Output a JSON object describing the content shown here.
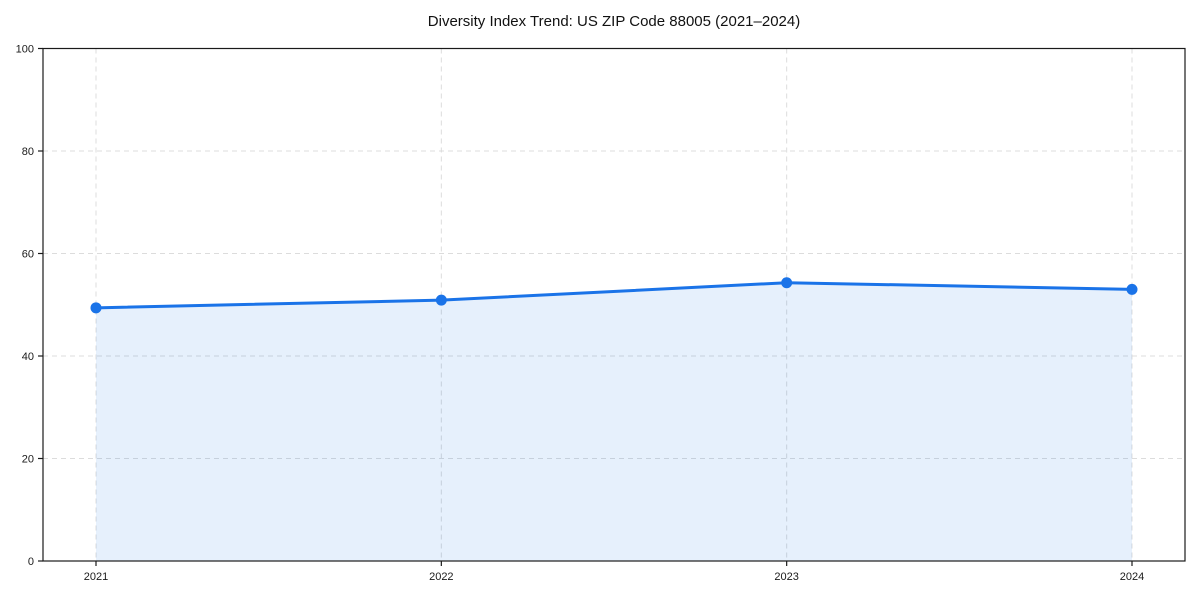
{
  "chart_data": {
    "type": "area",
    "title": "Diversity Index Trend: US ZIP Code 88005 (2021–2024)",
    "categories": [
      "2021",
      "2022",
      "2023",
      "2024"
    ],
    "values": [
      49.4,
      50.9,
      54.3,
      53.0
    ],
    "xlabel": "",
    "ylabel": "",
    "ylim": [
      0,
      100
    ],
    "yticks": [
      0,
      20,
      40,
      60,
      80,
      100
    ],
    "grid": true,
    "grid_style": "dashed",
    "legend_position": "none",
    "marker": "circle",
    "colors": {
      "line": "#1a73e8",
      "marker": "#1a73e8",
      "fill": "rgba(26,115,232,0.11)",
      "grid": "#dcdcdc",
      "axis": "#1a1a1a",
      "text": "#1a1a1a",
      "background": "#ffffff"
    }
  }
}
